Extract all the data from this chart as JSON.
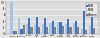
{
  "title": "",
  "sites": [
    "Atlanta",
    "Baltimore",
    "Denver",
    "King\nCo.",
    "Los\nAngeles",
    "Miami",
    "New\nOrleans",
    "New\nYork",
    "Phila-\ndelphia",
    "San\nFrancisco",
    "Seattle"
  ],
  "msm": [
    0.1,
    0.15,
    0.5,
    0.52,
    0.5,
    0.42,
    0.38,
    0.48,
    0.42,
    0.72,
    0.58
  ],
  "msw": [
    1.0,
    0.5,
    0.3,
    0.28,
    0.3,
    0.35,
    0.38,
    0.32,
    0.35,
    0.16,
    0.24
  ],
  "women": [
    0.1,
    0.28,
    0.2,
    0.2,
    0.2,
    0.23,
    0.24,
    0.2,
    0.23,
    0.12,
    0.18
  ],
  "colors": [
    "#4472c4",
    "#a8c4e0",
    "#808080"
  ],
  "legend_labels": [
    "MSM",
    "MSW",
    "Women"
  ],
  "ylim": [
    0,
    1.0
  ],
  "ytick_vals": [
    0.0,
    0.2,
    0.4,
    0.6,
    0.8,
    1.0
  ],
  "ytick_labels": [
    "0",
    ".2",
    ".4",
    ".6",
    ".8",
    "1.0"
  ],
  "background_color": "#e8e8e8",
  "plot_bg": "#dcdcdc",
  "bar_width": 0.28,
  "grid_color": "#ffffff"
}
